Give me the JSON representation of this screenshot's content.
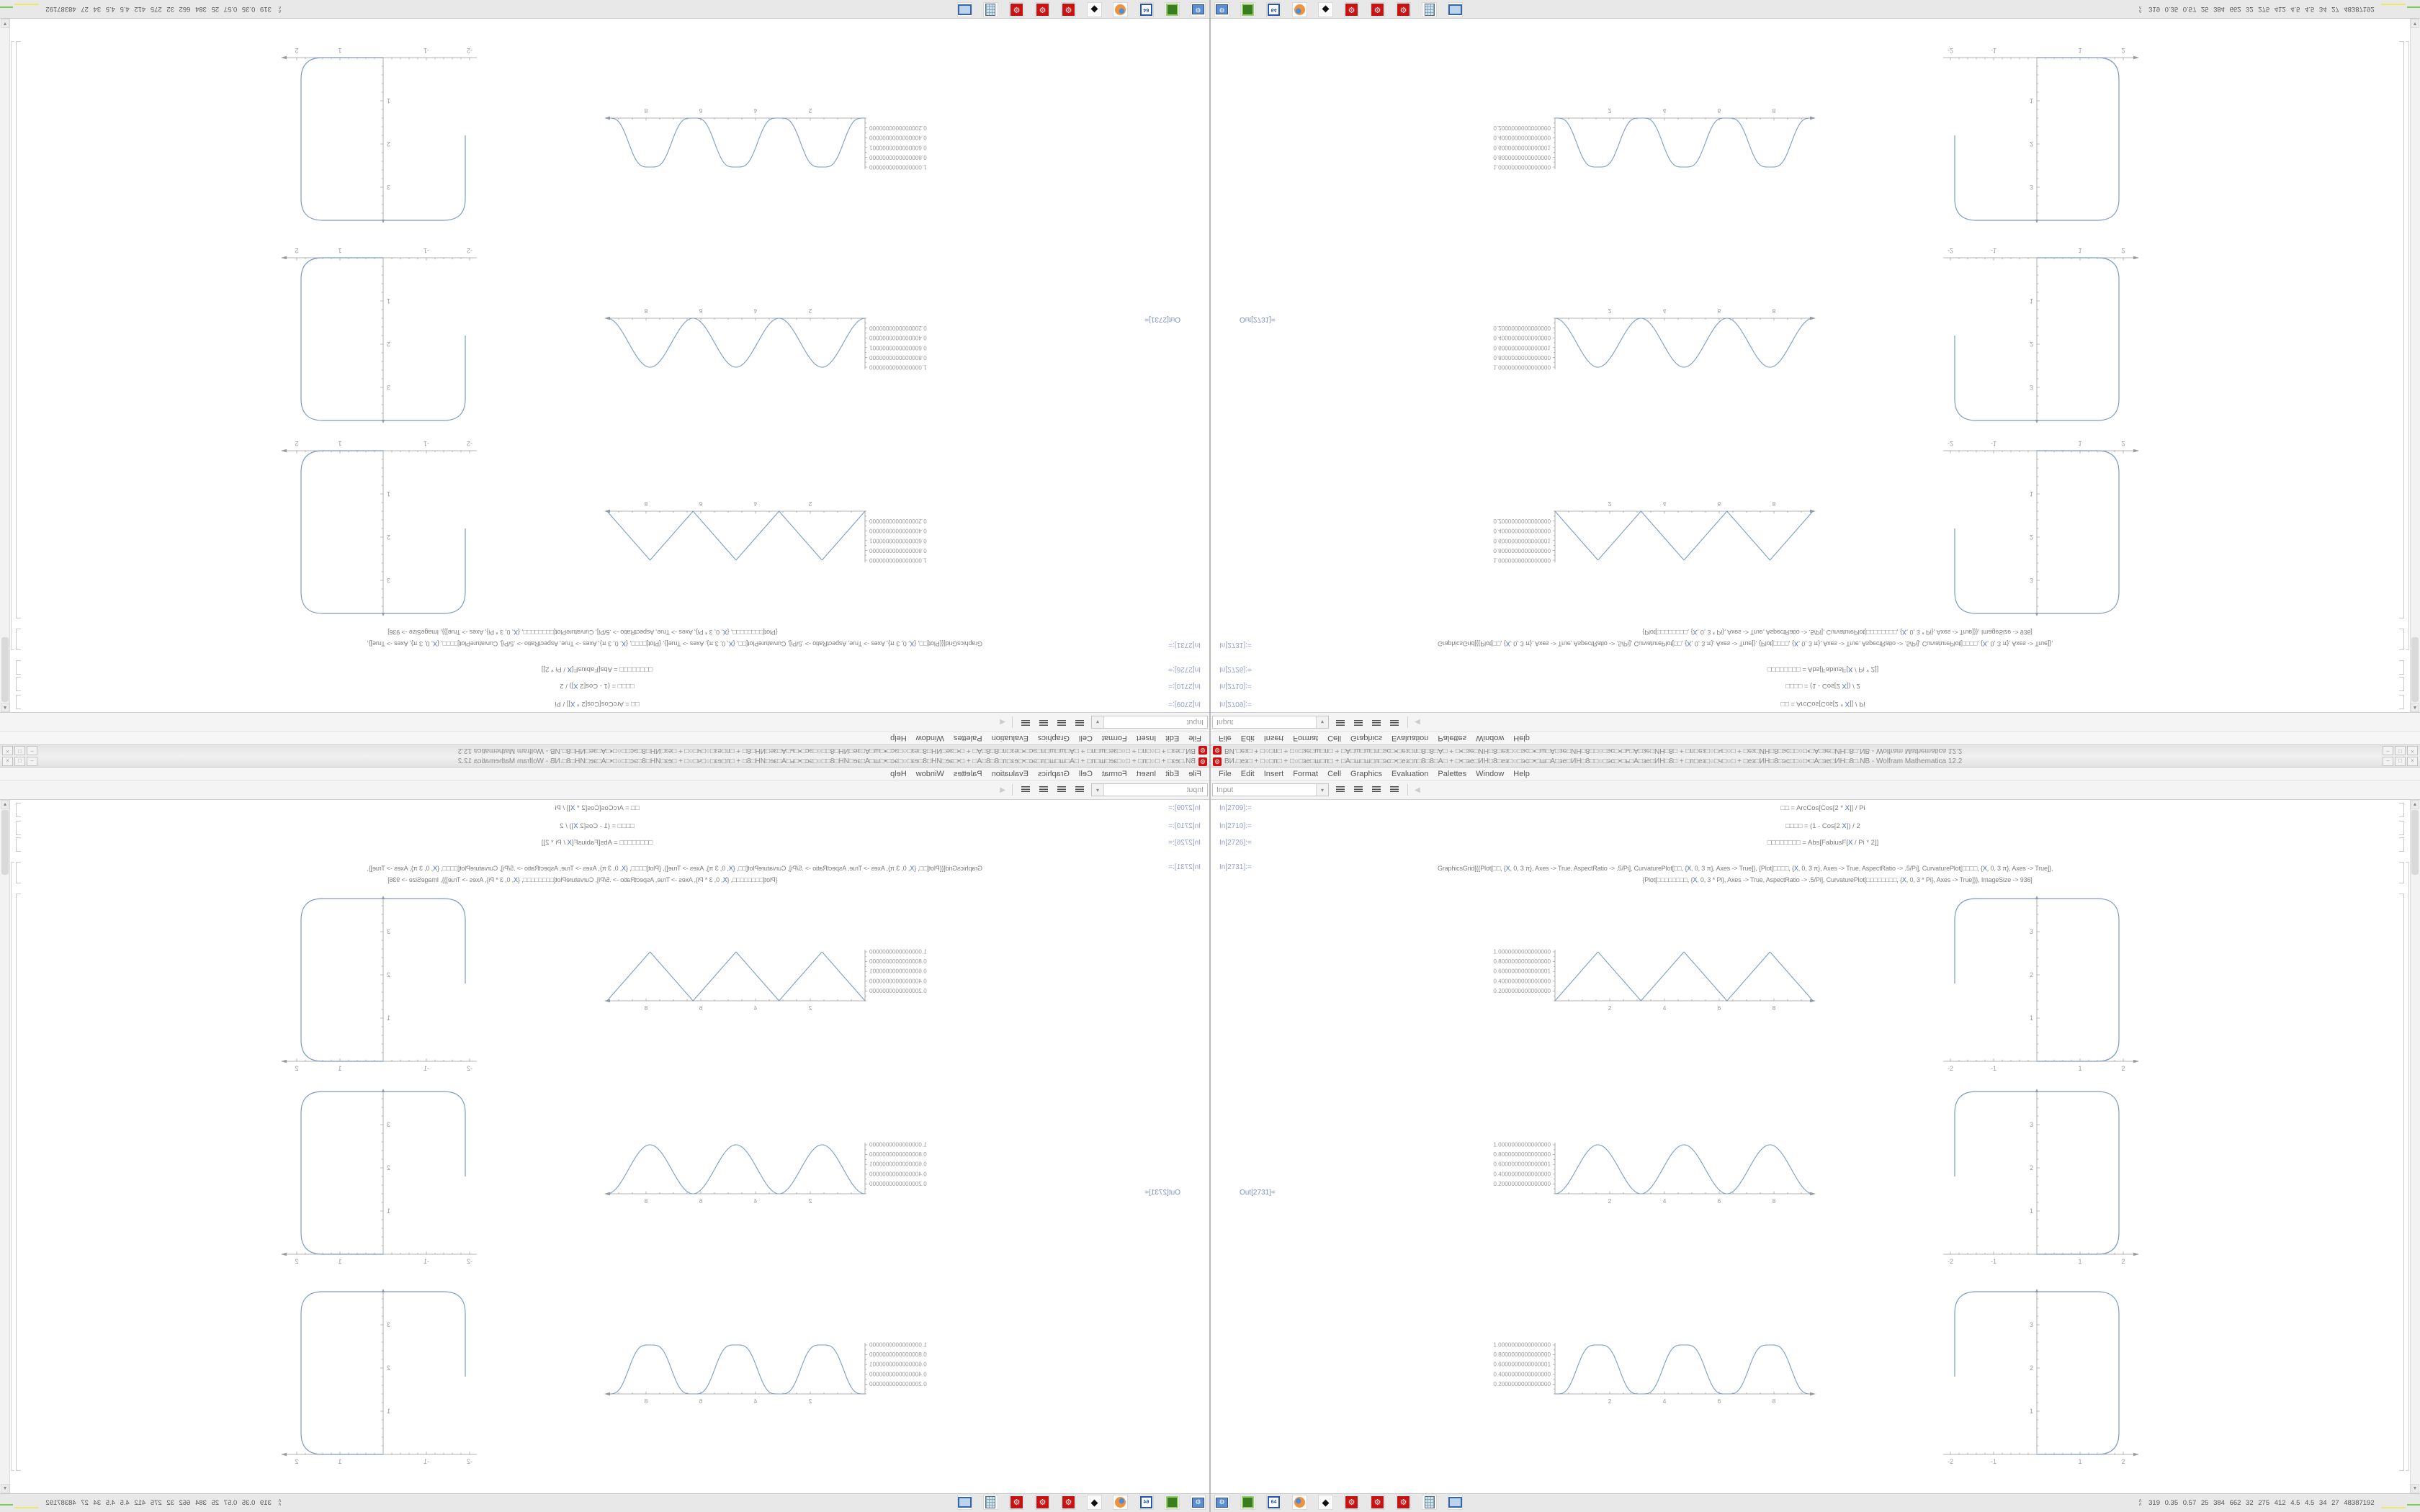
{
  "window": {
    "title": "ВИ.□ез□ + □○□п□ + □○□зе□ш□п□ + □А□ш□ш□п□эс□•□ез□п□8□8□А□ + □•□зе□ИН□8□ез□○□эс□•□ш□А□зе□ИН□8□□○□эс□•□ь□А□зе□ИН□8□ + □п□ез□○□ч□○□ + □ез□ИН□8□эс□□○□•□А□зе□ИН□8□.NB - Wolfram Mathematica 12.2",
    "minimize": "–",
    "restore": "□",
    "close": "×",
    "app_icon_glyph": "⚙"
  },
  "menu": {
    "items": [
      "File",
      "Edit",
      "Insert",
      "Format",
      "Cell",
      "Graphics",
      "Evaluation",
      "Palettes",
      "Window",
      "Help"
    ]
  },
  "toolbar": {
    "cell_style": "Input",
    "dropdown_arrow": "▾",
    "nav_arrow": "◀"
  },
  "scrollbar": {
    "up": "▲",
    "down": "▼"
  },
  "cells": {
    "items": [
      {
        "label": "In[2709]:=",
        "code": "□□ = ArcCos[Cos[2 * X]] / Pi"
      },
      {
        "label": "In[2710]:=",
        "code": "□□□□ = (1 - Cos[2 X]) / 2"
      },
      {
        "label": "In[2726]:=",
        "code": "□□□□□□□□ = Abs[FabiusF[X / Pi * 2]]"
      },
      {
        "label": "In[2731]:=",
        "code": "GraphicsGrid[{{Plot[□□, {X, 0, 3 π}, Axes -> True, AspectRatio -> .5/Pi], CurvaturePlot[□□, {X, 0, 3 π}, Axes -> True]}, {Plot[□□□□, {X, 0, 3 π}, Axes -> True, AspectRatio -> .5/Pi], CurvaturePlot[□□□□, {X, 0, 3 π}, Axes -> True]},",
        "code2": "{Plot[□□□□□□□□, {X, 0, 3 * Pi}, Axes -> True, AspectRatio -> .5/Pi], CurvaturePlot[□□□□□□□□, {X, 0, 3 * Pi}, Axes -> True]}}, ImageSize -> 936]"
      }
    ],
    "out_label": "Out[2731]="
  },
  "chart_data": [
    {
      "row": 1,
      "function_plot": {
        "type": "line",
        "fn": "tri",
        "expression": "ArcCos[Cos[2 X]]/Pi",
        "shape": "triangle-wave",
        "x_range": [
          0,
          9.42
        ],
        "y_range": [
          0,
          1
        ],
        "x_tick_labels": [
          2,
          4,
          6,
          8
        ],
        "y_tick_labels": [
          "1.0000000000000000",
          "0.8000000000000000",
          "0.6000000000000001",
          "0.4000000000000000",
          "0.2000000000000000"
        ],
        "peaks_x": [
          1.571,
          4.712,
          7.854
        ],
        "zeros_x": [
          0,
          3.142,
          6.283,
          9.425
        ],
        "curve_color": "#7b9cc8",
        "axis_color": "#9a9a9a"
      },
      "curvature_plot": {
        "type": "line",
        "shape": "rounded-square-open-left",
        "x_range": [
          -2.1,
          2.2
        ],
        "y_range": [
          0,
          3.9
        ],
        "x_tick_labels": [
          -2,
          -1,
          1,
          2
        ],
        "y_tick_labels": [
          1,
          2,
          3
        ],
        "curve_span_x": [
          -1.9,
          1.9
        ],
        "curve_span_y": [
          0,
          3.8
        ],
        "curve_color": "#7b9cc8",
        "axis_color": "#9a9a9a"
      }
    },
    {
      "row": 2,
      "function_plot": {
        "type": "line",
        "fn": "sin2",
        "expression": "(1 - Cos[2 X])/2",
        "shape": "sine-squared-arches",
        "x_range": [
          0,
          9.42
        ],
        "y_range": [
          0,
          1
        ],
        "x_tick_labels": [
          2,
          4,
          6,
          8
        ],
        "y_tick_labels": [
          "1.0000000000000000",
          "0.8000000000000000",
          "0.6000000000000001",
          "0.4000000000000000",
          "0.2000000000000000"
        ],
        "peaks_x": [
          1.571,
          4.712,
          7.854
        ],
        "zeros_x": [
          0,
          3.142,
          6.283,
          9.425
        ],
        "curve_color": "#7b9cc8",
        "axis_color": "#9a9a9a"
      },
      "curvature_plot": {
        "type": "line",
        "shape": "rounded-square-open-left",
        "x_range": [
          -2.1,
          2.2
        ],
        "y_range": [
          0,
          3.9
        ],
        "x_tick_labels": [
          -2,
          -1,
          1,
          2
        ],
        "y_tick_labels": [
          1,
          2,
          3
        ],
        "curve_span_x": [
          -1.9,
          1.9
        ],
        "curve_span_y": [
          0,
          3.8
        ],
        "curve_color": "#7b9cc8",
        "axis_color": "#9a9a9a"
      }
    },
    {
      "row": 3,
      "function_plot": {
        "type": "line",
        "fn": "fabius",
        "expression": "Abs[FabiusF[X/Pi*2]]",
        "shape": "smooth-arches",
        "x_range": [
          0,
          9.42
        ],
        "y_range": [
          0,
          1
        ],
        "x_tick_labels": [
          2,
          4,
          6,
          8
        ],
        "y_tick_labels": [
          "1.0000000000000000",
          "0.8000000000000000",
          "0.6000000000000001",
          "0.4000000000000000",
          "0.2000000000000000"
        ],
        "peaks_x": [
          1.571,
          4.712,
          7.854
        ],
        "zeros_x": [
          0,
          3.142,
          6.283,
          9.425
        ],
        "curve_color": "#7b9cc8",
        "axis_color": "#9a9a9a"
      },
      "curvature_plot": {
        "type": "line",
        "shape": "rounded-square-open-left",
        "x_range": [
          -2.1,
          2.2
        ],
        "y_range": [
          0,
          3.9
        ],
        "x_tick_labels": [
          -2,
          -1,
          1,
          2
        ],
        "y_tick_labels": [
          1,
          2,
          3
        ],
        "curve_span_x": [
          -1.9,
          1.9
        ],
        "curve_span_y": [
          0,
          3.8
        ],
        "curve_color": "#7b9cc8",
        "axis_color": "#9a9a9a"
      }
    }
  ],
  "taskbar": {
    "icons": [
      {
        "name": "monitor-gear",
        "glyph": "⚙"
      },
      {
        "name": "archive-drive",
        "glyph": ""
      },
      {
        "name": "floppy-64",
        "glyph": "64"
      },
      {
        "name": "firefox",
        "glyph": ""
      },
      {
        "name": "inkscape",
        "glyph": "◆"
      },
      {
        "name": "mathematica-kernel",
        "glyph": "⚙"
      },
      {
        "name": "mathematica-kernel",
        "glyph": "⚙"
      },
      {
        "name": "mathematica-kernel",
        "glyph": "⚙"
      },
      {
        "name": "calculator",
        "glyph": ""
      },
      {
        "name": "show-desktop",
        "glyph": ""
      }
    ],
    "sysmon": {
      "expand_top": "∧",
      "expand_bottom": "∧",
      "stats": "319 0.35 0.57 25 384 662 32 275 412 4.5 4.5 34 27 48387192",
      "graph_colors": {
        "yellow": "#e9e96a",
        "green": "#77cc55",
        "brown": "#a85517",
        "red": "#cc2b1b",
        "dots": [
          "#7733aa",
          "#cc8833",
          "#2277cc",
          "#993399",
          "#dd9922"
        ]
      }
    }
  },
  "colors": {
    "accent_red": "#cc1111",
    "label_blue": "#93a1c9",
    "curve_blue": "#7b9cc8"
  }
}
